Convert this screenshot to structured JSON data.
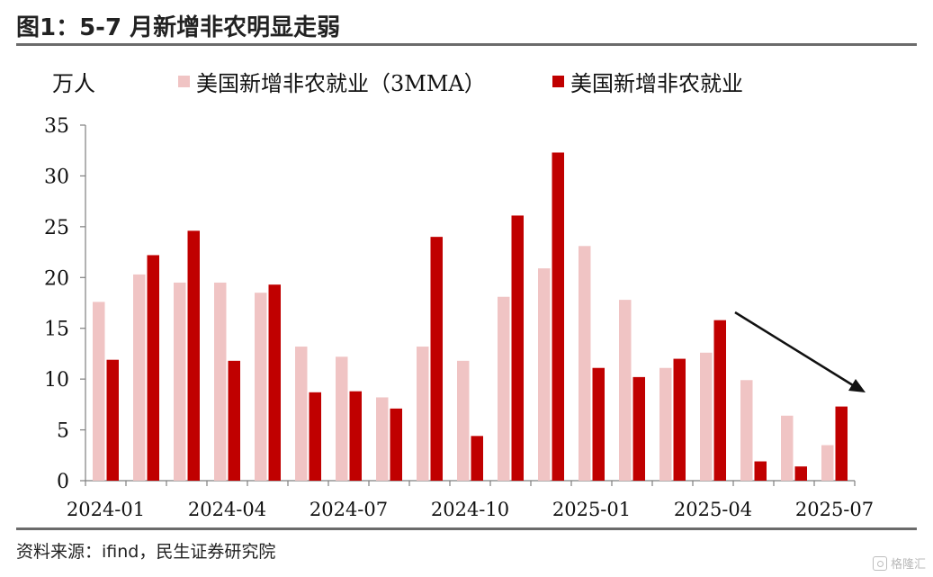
{
  "header": {
    "title": "图1：5-7 月新增非农明显走弱"
  },
  "footer": {
    "source": "资料来源：ifind，民生证券研究院"
  },
  "watermark": {
    "text": "格隆汇",
    "icon": "gelonghui-logo-icon"
  },
  "colors": {
    "series_3mma": "#f0c4c4",
    "series_monthly": "#c00000",
    "axis": "#7f7f7f",
    "arrow": "#111111"
  },
  "chart_data": {
    "type": "bar",
    "title": "图1：5-7 月新增非农明显走弱",
    "ylabel": "万人",
    "xlabel": "",
    "ylim": [
      0,
      35
    ],
    "yticks": [
      0,
      5,
      10,
      15,
      20,
      25,
      30,
      35
    ],
    "categories": [
      "2024-01",
      "2024-02",
      "2024-03",
      "2024-04",
      "2024-05",
      "2024-06",
      "2024-07",
      "2024-08",
      "2024-09",
      "2024-10",
      "2024-11",
      "2024-12",
      "2025-01",
      "2025-02",
      "2025-03",
      "2025-04",
      "2025-05",
      "2025-06",
      "2025-07"
    ],
    "xtick_labels": [
      "2024-01",
      "2024-04",
      "2024-07",
      "2024-10",
      "2025-01",
      "2025-04",
      "2025-07"
    ],
    "series": [
      {
        "name": "美国新增非农就业（3MMA）",
        "values": [
          17.6,
          20.3,
          19.5,
          19.5,
          18.5,
          13.2,
          12.2,
          8.2,
          13.2,
          11.8,
          18.1,
          20.9,
          23.1,
          17.8,
          11.1,
          12.6,
          9.9,
          6.4,
          3.5
        ]
      },
      {
        "name": "美国新增非农就业",
        "values": [
          11.9,
          22.2,
          24.6,
          11.8,
          19.3,
          8.7,
          8.8,
          7.1,
          24.0,
          4.4,
          26.1,
          32.3,
          11.1,
          10.2,
          12.0,
          15.8,
          1.9,
          1.4,
          7.3
        ]
      }
    ],
    "legend_position": "top",
    "grid": false,
    "annotations": [
      {
        "type": "arrow",
        "description": "downward trend arrow from 2025-04 to 2025-07"
      }
    ]
  }
}
